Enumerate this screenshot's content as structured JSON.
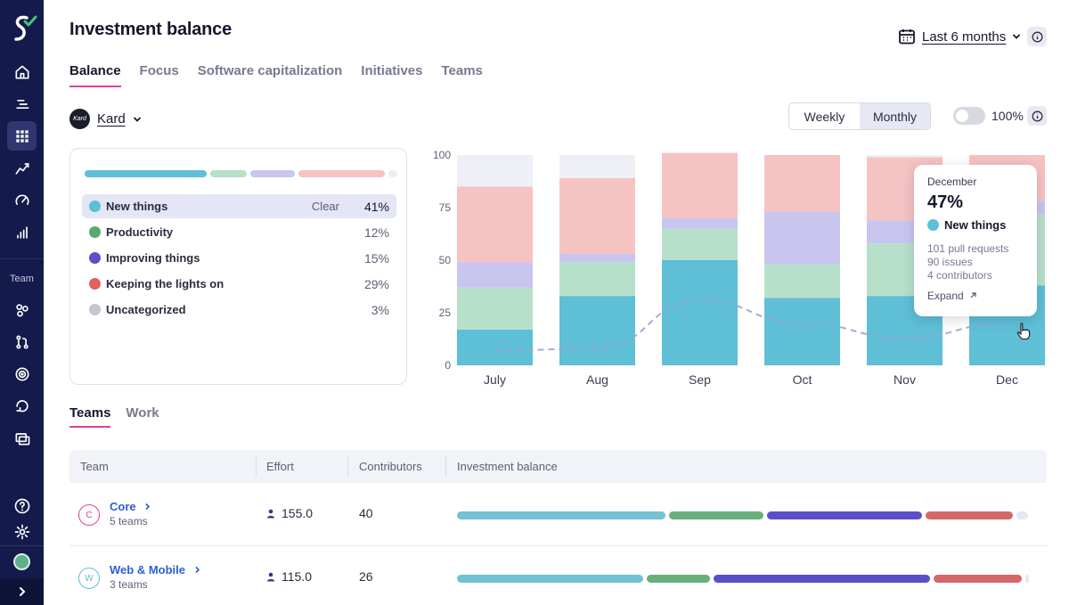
{
  "sidebar": {
    "team_label": "Team",
    "items": [
      {
        "icon": "home-icon"
      },
      {
        "icon": "list-icon"
      },
      {
        "icon": "grid-icon"
      },
      {
        "icon": "trend-icon"
      },
      {
        "icon": "gauge-icon"
      },
      {
        "icon": "bar-icon"
      },
      {
        "icon": "team-icon"
      },
      {
        "icon": "git-icon"
      },
      {
        "icon": "target-icon"
      },
      {
        "icon": "refresh-icon"
      },
      {
        "icon": "stack-icon"
      },
      {
        "icon": "help-icon"
      },
      {
        "icon": "gear-icon"
      }
    ]
  },
  "header": {
    "title": "Investment balance",
    "range": "Last 6 months"
  },
  "tabs": [
    "Balance",
    "Focus",
    "Software capitalization",
    "Initiatives",
    "Teams"
  ],
  "org": {
    "name": "Kard",
    "logo_text": "Kard"
  },
  "view_toggle": {
    "weekly": "Weekly",
    "monthly": "Monthly",
    "selected": "Monthly"
  },
  "percent_toggle": {
    "label": "100%",
    "on": false
  },
  "legend": {
    "clear_label": "Clear",
    "items": [
      {
        "label": "New things",
        "pct": "41%",
        "color": "#5ebfd6"
      },
      {
        "label": "Productivity",
        "pct": "12%",
        "color": "#58a873"
      },
      {
        "label": "Improving things",
        "pct": "15%",
        "color": "#5a4fc9"
      },
      {
        "label": "Keeping the lights on",
        "pct": "29%",
        "color": "#e65f5f"
      },
      {
        "label": "Uncategorized",
        "pct": "3%",
        "color": "#c4c6d0"
      }
    ]
  },
  "chart_data": {
    "type": "bar",
    "stacked": true,
    "categories": [
      "July",
      "Aug",
      "Sep",
      "Oct",
      "Nov",
      "Dec"
    ],
    "ylim": [
      0,
      100
    ],
    "yticks": [
      0,
      25,
      50,
      75,
      100
    ],
    "series": [
      {
        "name": "New things",
        "color": "#5ebfd6",
        "values": [
          17,
          33,
          50,
          32,
          33,
          38
        ]
      },
      {
        "name": "Productivity",
        "color": "#b7e0cb",
        "values": [
          20,
          16,
          15,
          16,
          25,
          34
        ]
      },
      {
        "name": "Improving things",
        "color": "#c8c6ef",
        "values": [
          12,
          4,
          5,
          25,
          11,
          6
        ]
      },
      {
        "name": "Keeping the lights on",
        "color": "#f6c3c3",
        "values": [
          36,
          36,
          31,
          27,
          30,
          22
        ]
      },
      {
        "name": "Uncategorized",
        "color": "#eef0f6",
        "values": [
          15,
          11,
          0,
          0,
          1,
          0
        ]
      }
    ],
    "trend_line": [
      7,
      8,
      31,
      20,
      13,
      20
    ]
  },
  "tooltip": {
    "month": "December",
    "pct": "47%",
    "category": "New things",
    "pull_requests": "101 pull requests",
    "issues": "90 issues",
    "contributors": "4 contributors",
    "expand": "Expand"
  },
  "subtabs": [
    "Teams",
    "Work"
  ],
  "table": {
    "headers": [
      "Team",
      "Effort",
      "Contributors",
      "Investment balance"
    ],
    "rows": [
      {
        "initial": "C",
        "initial_color": "#e0409a",
        "name": "Core",
        "sub": "5 teams",
        "effort": "155.0",
        "contributors": "40",
        "balance": [
          28,
          13,
          21,
          12,
          2
        ]
      },
      {
        "initial": "W",
        "initial_color": "#5ebfd6",
        "name": "Web & Mobile",
        "sub": "3 teams",
        "effort": "115.0",
        "contributors": "26",
        "balance": [
          31,
          11,
          36,
          15,
          1
        ]
      }
    ]
  }
}
